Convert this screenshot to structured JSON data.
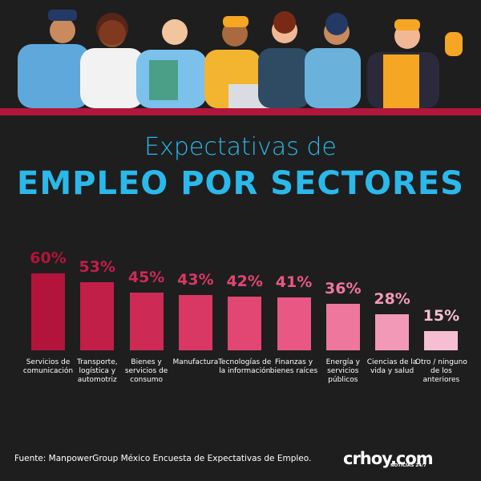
{
  "chart_data": {
    "type": "bar",
    "title": "Expectativas de",
    "subtitle": "EMPLEO POR SECTORES",
    "categories": [
      "Servicios de comunicación",
      "Transporte, logística y automotriz",
      "Bienes y servicios de consumo",
      "Manufactura",
      "Tecnologías de la información",
      "Finanzas y bienes raíces",
      "Energía y servicios públicos",
      "Ciencias de la vida y salud",
      "Otro / ninguno de los anteriores"
    ],
    "values": [
      60,
      53,
      45,
      43,
      42,
      41,
      36,
      28,
      15
    ],
    "value_labels": [
      "60%",
      "53%",
      "45%",
      "43%",
      "42%",
      "41%",
      "36%",
      "28%",
      "15%"
    ],
    "colors": [
      "#b3143b",
      "#c21f48",
      "#cd2b55",
      "#d93864",
      "#e24672",
      "#e95884",
      "#ee779d",
      "#f299b7",
      "#f6bed2"
    ],
    "source": "Fuente: ManpowerGroup México Encuesta de Expectativas de Empleo.",
    "logo": "crhoy.com",
    "logo_tagline": "NOTICIAS 24/7"
  }
}
